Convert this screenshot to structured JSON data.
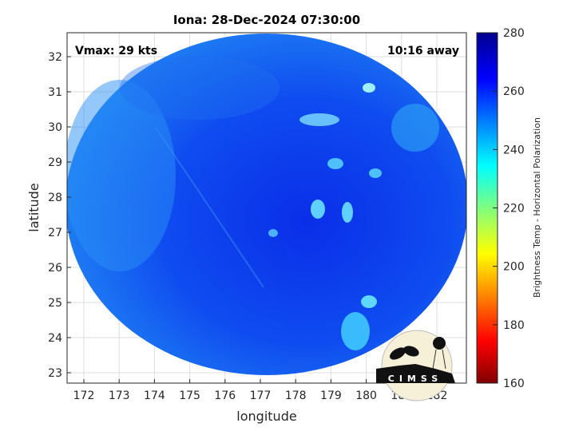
{
  "title": "Iona: 28-Dec-2024 07:30:00",
  "annotations": {
    "vmax": "Vmax: 29 kts",
    "time_away": "10:16 away"
  },
  "axes": {
    "xlabel": "longitude",
    "ylabel": "latitude",
    "xlim": [
      171.5,
      182.8
    ],
    "ylim": [
      22.7,
      32.7
    ],
    "xticks": [
      "172",
      "173",
      "174",
      "175",
      "176",
      "177",
      "178",
      "179",
      "180",
      "181",
      "182"
    ],
    "yticks": [
      "23",
      "24",
      "25",
      "26",
      "27",
      "28",
      "29",
      "30",
      "31",
      "32"
    ],
    "grid": true
  },
  "colorbar": {
    "label": "Brightness Temp - Horizontal Polarization",
    "range": [
      160,
      280
    ],
    "ticks": [
      "160",
      "180",
      "200",
      "220",
      "240",
      "260",
      "280"
    ],
    "colormap": "jet"
  },
  "logo": "CIMSS"
}
